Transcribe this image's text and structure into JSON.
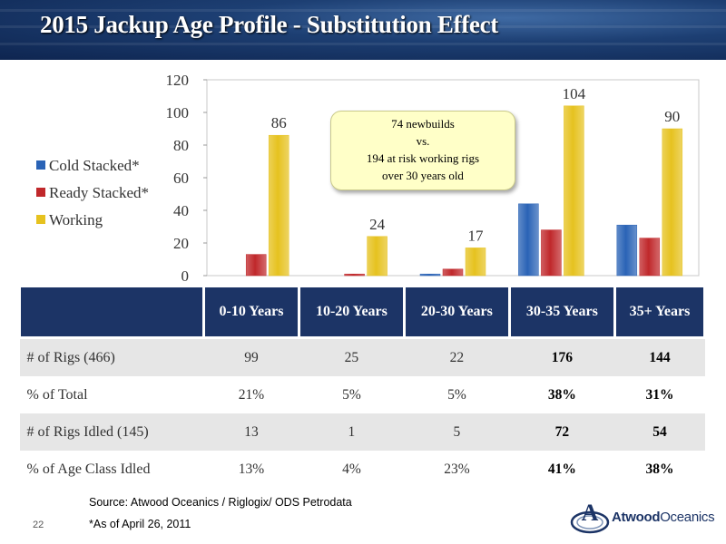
{
  "title": "2015 Jackup Age Profile - Substitution Effect",
  "chart_data": {
    "type": "bar",
    "categories": [
      "0-10 Years",
      "10-20 Years",
      "20-30 Years",
      "30-35 Years",
      "35+ Years"
    ],
    "series": [
      {
        "name": "Cold Stacked*",
        "color": "#2a63b6",
        "values": [
          0,
          0,
          1,
          44,
          31
        ]
      },
      {
        "name": "Ready Stacked*",
        "color": "#c0282b",
        "values": [
          13,
          1,
          4,
          28,
          23
        ]
      },
      {
        "name": "Working",
        "color": "#e6c21f",
        "values": [
          86,
          24,
          17,
          104,
          90
        ]
      }
    ],
    "data_labels": [
      "86",
      "24",
      "17",
      "104",
      "90"
    ],
    "ylim": [
      0,
      120
    ],
    "yticks": [
      0,
      20,
      40,
      60,
      80,
      100,
      120
    ],
    "grid": false,
    "legend": "left"
  },
  "callout": {
    "line1": "74 newbuilds",
    "line2": "vs.",
    "line3": "194 at risk working rigs",
    "line4": "over 30 years old"
  },
  "table": {
    "headers": [
      "0-10 Years",
      "10-20 Years",
      "20-30 Years",
      "30-35 Years",
      "35+ Years"
    ],
    "rows": [
      {
        "label": "# of Rigs (466)",
        "values": [
          "99",
          "25",
          "22",
          "176",
          "144"
        ]
      },
      {
        "label": "% of Total",
        "values": [
          "21%",
          "5%",
          "5%",
          "38%",
          "31%"
        ]
      },
      {
        "label": "# of Rigs Idled (145)",
        "values": [
          "13",
          "1",
          "5",
          "72",
          "54"
        ]
      },
      {
        "label": "% of Age Class Idled",
        "values": [
          "13%",
          "4%",
          "23%",
          "41%",
          "38%"
        ]
      }
    ]
  },
  "footer": {
    "source": "Source: Atwood Oceanics / Riglogix/ ODS Petrodata",
    "asof": "*As of April 26, 2011",
    "page": "22"
  },
  "logo": {
    "mark": "A",
    "word_bold": "Atwood",
    "word_regular": "Oceanics"
  }
}
